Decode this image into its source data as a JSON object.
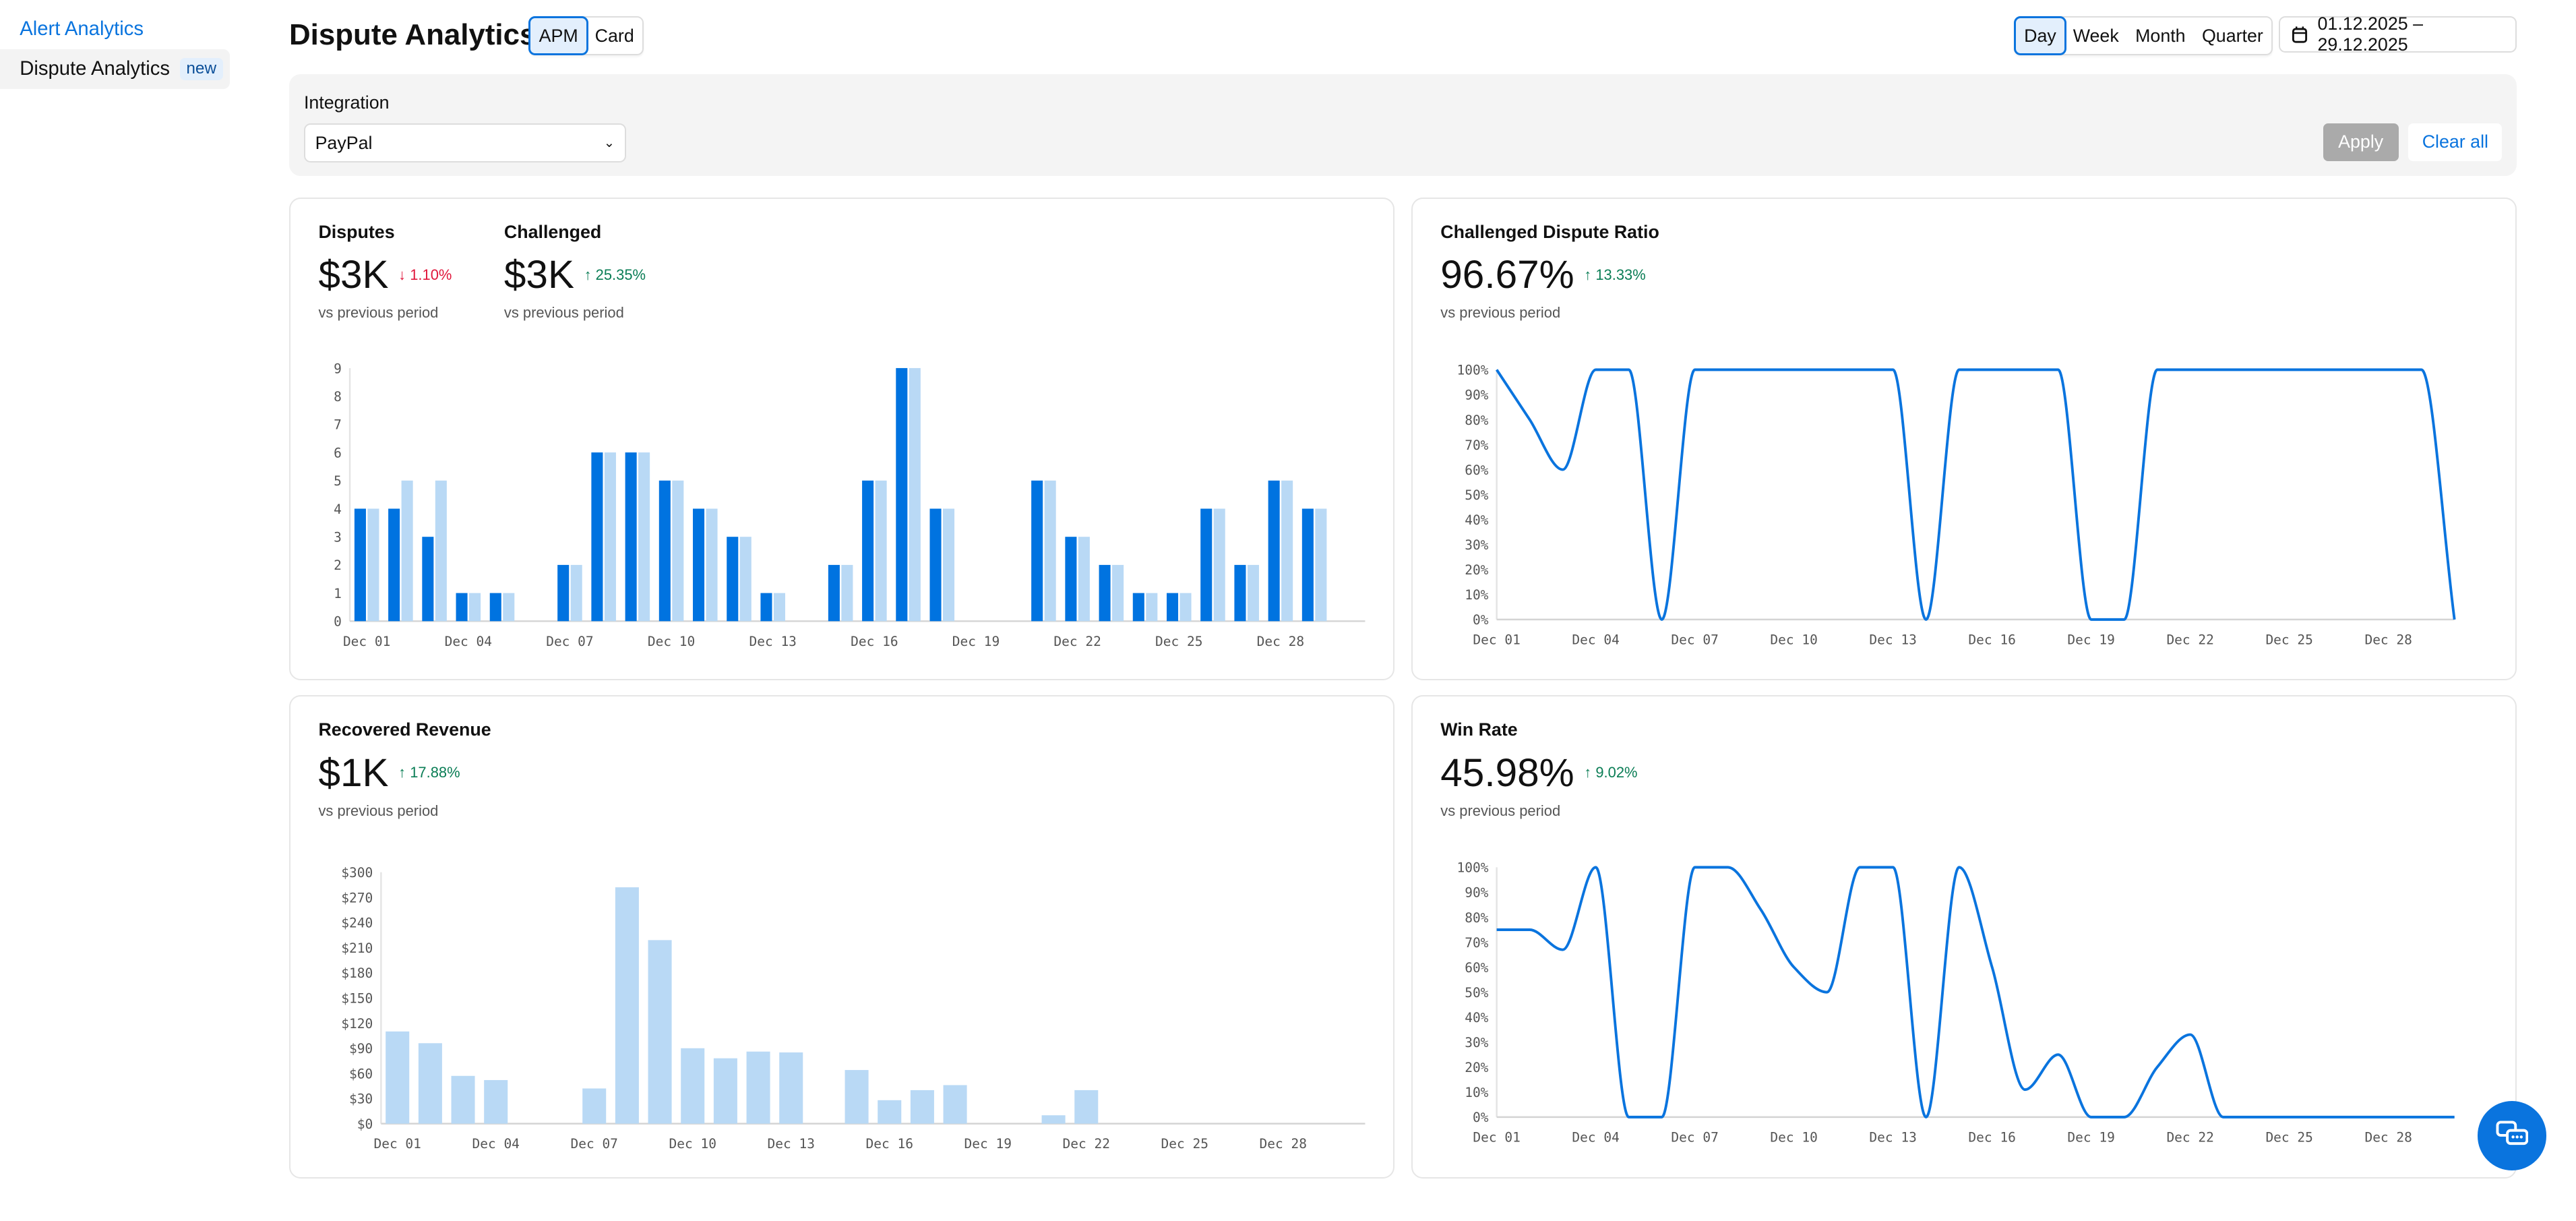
{
  "sidebar": {
    "items": [
      {
        "label": "Alert Analytics",
        "active": false
      },
      {
        "label": "Dispute Analytics",
        "badge": "new",
        "active": true
      }
    ]
  },
  "header": {
    "title": "Dispute Analytics",
    "type_toggle": [
      {
        "label": "APM",
        "selected": true
      },
      {
        "label": "Card",
        "selected": false
      }
    ],
    "granularity": [
      {
        "label": "Day",
        "selected": true
      },
      {
        "label": "Week",
        "selected": false
      },
      {
        "label": "Month",
        "selected": false
      },
      {
        "label": "Quarter",
        "selected": false
      }
    ],
    "date_range": "01.12.2025 – 29.12.2025",
    "date_icon": "calendar-icon"
  },
  "filters": {
    "integration_label": "Integration",
    "integration_value": "PayPal",
    "apply_label": "Apply",
    "clear_label": "Clear all"
  },
  "cards": {
    "disputes": {
      "title": "Disputes",
      "value": "$3K",
      "delta": "1.10%",
      "direction": "down",
      "sub": "vs previous period"
    },
    "challenged": {
      "title": "Challenged",
      "value": "$3K",
      "delta": "25.35%",
      "direction": "up",
      "sub": "vs previous period"
    },
    "ratio": {
      "title": "Challenged Dispute Ratio",
      "value": "96.67%",
      "delta": "13.33%",
      "direction": "up",
      "sub": "vs previous period"
    },
    "recovered": {
      "title": "Recovered Revenue",
      "value": "$1K",
      "delta": "17.88%",
      "direction": "up",
      "sub": "vs previous period"
    },
    "winrate": {
      "title": "Win Rate",
      "value": "45.98%",
      "delta": "9.02%",
      "direction": "up",
      "sub": "vs previous period"
    }
  },
  "colors": {
    "accent": "#0a74de",
    "bar_dark": "#0073e0",
    "bar_light": "#b9d9f5",
    "up": "#0a7d55",
    "down": "#e0163b"
  },
  "chart_data": [
    {
      "id": "disputes",
      "type": "bar",
      "categories": [
        "Dec 01",
        "Dec 02",
        "Dec 03",
        "Dec 04",
        "Dec 05",
        "Dec 06",
        "Dec 07",
        "Dec 08",
        "Dec 09",
        "Dec 10",
        "Dec 11",
        "Dec 12",
        "Dec 13",
        "Dec 14",
        "Dec 15",
        "Dec 16",
        "Dec 17",
        "Dec 18",
        "Dec 19",
        "Dec 20",
        "Dec 21",
        "Dec 22",
        "Dec 23",
        "Dec 24",
        "Dec 25",
        "Dec 26",
        "Dec 27",
        "Dec 28",
        "Dec 29",
        "Dec 30"
      ],
      "series": [
        {
          "values": [
            4,
            4,
            3,
            1,
            1,
            0,
            2,
            6,
            6,
            5,
            4,
            3,
            1,
            0,
            2,
            5,
            9,
            4,
            0,
            0,
            5,
            3,
            2,
            1,
            1,
            4,
            2,
            5,
            4,
            0
          ],
          "color": "#0073e0"
        },
        {
          "values": [
            4,
            5,
            5,
            1,
            1,
            0,
            2,
            6,
            6,
            5,
            4,
            3,
            1,
            0,
            2,
            5,
            9,
            4,
            0,
            0,
            5,
            3,
            2,
            1,
            1,
            4,
            2,
            5,
            4,
            0
          ],
          "color": "#b9d9f5"
        }
      ],
      "ylim": [
        0,
        9
      ],
      "yticks": [
        "0",
        "1",
        "2",
        "3",
        "4",
        "5",
        "6",
        "7",
        "8",
        "9"
      ],
      "xticks": [
        "Dec 01",
        "Dec 04",
        "Dec 07",
        "Dec 10",
        "Dec 13",
        "Dec 16",
        "Dec 19",
        "Dec 22",
        "Dec 25",
        "Dec 28"
      ]
    },
    {
      "id": "ratio",
      "type": "line",
      "categories": [
        "Dec 01",
        "Dec 02",
        "Dec 03",
        "Dec 04",
        "Dec 05",
        "Dec 06",
        "Dec 07",
        "Dec 08",
        "Dec 09",
        "Dec 10",
        "Dec 11",
        "Dec 12",
        "Dec 13",
        "Dec 14",
        "Dec 15",
        "Dec 16",
        "Dec 17",
        "Dec 18",
        "Dec 19",
        "Dec 20",
        "Dec 21",
        "Dec 22",
        "Dec 23",
        "Dec 24",
        "Dec 25",
        "Dec 26",
        "Dec 27",
        "Dec 28",
        "Dec 29",
        "Dec 30"
      ],
      "values": [
        100,
        80,
        60,
        100,
        100,
        0,
        100,
        100,
        100,
        100,
        100,
        100,
        100,
        0,
        100,
        100,
        100,
        100,
        0,
        0,
        100,
        100,
        100,
        100,
        100,
        100,
        100,
        100,
        100,
        0
      ],
      "ylim": [
        0,
        100
      ],
      "yticks": [
        "0%",
        "10%",
        "20%",
        "30%",
        "40%",
        "50%",
        "60%",
        "70%",
        "80%",
        "90%",
        "100%"
      ],
      "xticks": [
        "Dec 01",
        "Dec 04",
        "Dec 07",
        "Dec 10",
        "Dec 13",
        "Dec 16",
        "Dec 19",
        "Dec 22",
        "Dec 25",
        "Dec 28"
      ]
    },
    {
      "id": "recovered",
      "type": "bar",
      "categories": [
        "Dec 01",
        "Dec 02",
        "Dec 03",
        "Dec 04",
        "Dec 05",
        "Dec 06",
        "Dec 07",
        "Dec 08",
        "Dec 09",
        "Dec 10",
        "Dec 11",
        "Dec 12",
        "Dec 13",
        "Dec 14",
        "Dec 15",
        "Dec 16",
        "Dec 17",
        "Dec 18",
        "Dec 19",
        "Dec 20",
        "Dec 21",
        "Dec 22",
        "Dec 23",
        "Dec 24",
        "Dec 25",
        "Dec 26",
        "Dec 27",
        "Dec 28",
        "Dec 29",
        "Dec 30"
      ],
      "series": [
        {
          "values": [
            110,
            96,
            57,
            52,
            0,
            0,
            42,
            282,
            219,
            90,
            78,
            86,
            85,
            0,
            64,
            28,
            40,
            46,
            0,
            0,
            10,
            40,
            0,
            0,
            0,
            0,
            0,
            0,
            0,
            0
          ],
          "color": "#b9d9f5"
        }
      ],
      "ylim": [
        0,
        300
      ],
      "yticks": [
        "$0",
        "$30",
        "$60",
        "$90",
        "$120",
        "$150",
        "$180",
        "$210",
        "$240",
        "$270",
        "$300"
      ],
      "xticks": [
        "Dec 01",
        "Dec 04",
        "Dec 07",
        "Dec 10",
        "Dec 13",
        "Dec 16",
        "Dec 19",
        "Dec 22",
        "Dec 25",
        "Dec 28"
      ]
    },
    {
      "id": "winrate",
      "type": "line",
      "categories": [
        "Dec 01",
        "Dec 02",
        "Dec 03",
        "Dec 04",
        "Dec 05",
        "Dec 06",
        "Dec 07",
        "Dec 08",
        "Dec 09",
        "Dec 10",
        "Dec 11",
        "Dec 12",
        "Dec 13",
        "Dec 14",
        "Dec 15",
        "Dec 16",
        "Dec 17",
        "Dec 18",
        "Dec 19",
        "Dec 20",
        "Dec 21",
        "Dec 22",
        "Dec 23",
        "Dec 24",
        "Dec 25",
        "Dec 26",
        "Dec 27",
        "Dec 28",
        "Dec 29",
        "Dec 30"
      ],
      "values": [
        75,
        75,
        67,
        100,
        0,
        0,
        100,
        100,
        83,
        60,
        50,
        100,
        100,
        0,
        100,
        60,
        11,
        25,
        0,
        0,
        20,
        33,
        0,
        0,
        0,
        0,
        0,
        0,
        0,
        0
      ],
      "ylim": [
        0,
        100
      ],
      "yticks": [
        "0%",
        "10%",
        "20%",
        "30%",
        "40%",
        "50%",
        "60%",
        "70%",
        "80%",
        "90%",
        "100%"
      ],
      "xticks": [
        "Dec 01",
        "Dec 04",
        "Dec 07",
        "Dec 10",
        "Dec 13",
        "Dec 16",
        "Dec 19",
        "Dec 22",
        "Dec 25",
        "Dec 28"
      ]
    }
  ]
}
